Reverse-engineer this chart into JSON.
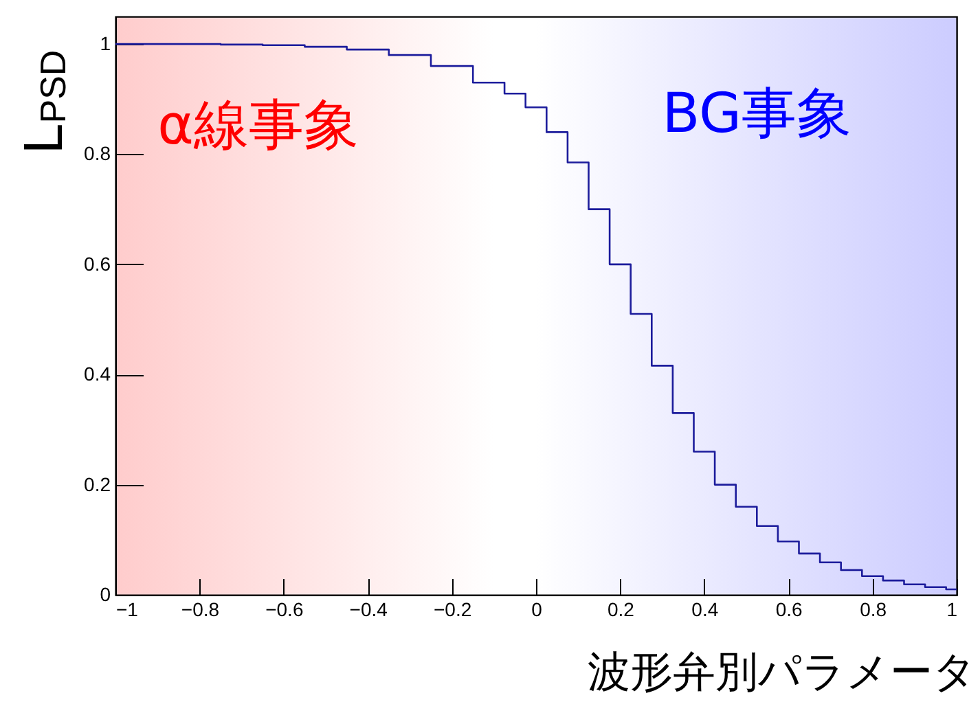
{
  "chart_data": {
    "type": "step",
    "xlabel": "波形弁別パラメータ",
    "ylabel": "L$_{PSD}$",
    "annotations": [
      "α線事象",
      "BG事象"
    ],
    "x": [
      -1,
      -0.9,
      -0.8,
      -0.7,
      -0.6,
      -0.5,
      -0.4,
      -0.3,
      -0.2,
      -0.1,
      -0.05,
      0,
      0.05,
      0.1,
      0.15,
      0.2,
      0.25,
      0.3,
      0.35,
      0.4,
      0.45,
      0.5,
      0.55,
      0.6,
      0.65,
      0.7,
      0.75,
      0.8,
      0.85,
      0.9,
      0.95,
      1
    ],
    "series": [
      {
        "color": "#1c1c9c",
        "values": [
          1,
          1,
          1,
          0.999,
          0.998,
          0.995,
          0.99,
          0.98,
          0.96,
          0.93,
          0.91,
          0.885,
          0.84,
          0.785,
          0.7,
          0.6,
          0.51,
          0.416,
          0.33,
          0.26,
          0.2,
          0.16,
          0.125,
          0.097,
          0.075,
          0.059,
          0.045,
          0.034,
          0.026,
          0.019,
          0.014,
          0.01
        ]
      }
    ],
    "xlim": [
      -1,
      1
    ],
    "ylim": [
      0,
      1.05
    ],
    "xticks": [
      -1,
      -0.8,
      -0.6,
      -0.4,
      -0.2,
      0,
      0.2,
      0.4,
      0.6,
      0.8,
      1
    ],
    "yticks": [
      0,
      0.2,
      0.4,
      0.6,
      0.8,
      1
    ],
    "grid": false
  }
}
